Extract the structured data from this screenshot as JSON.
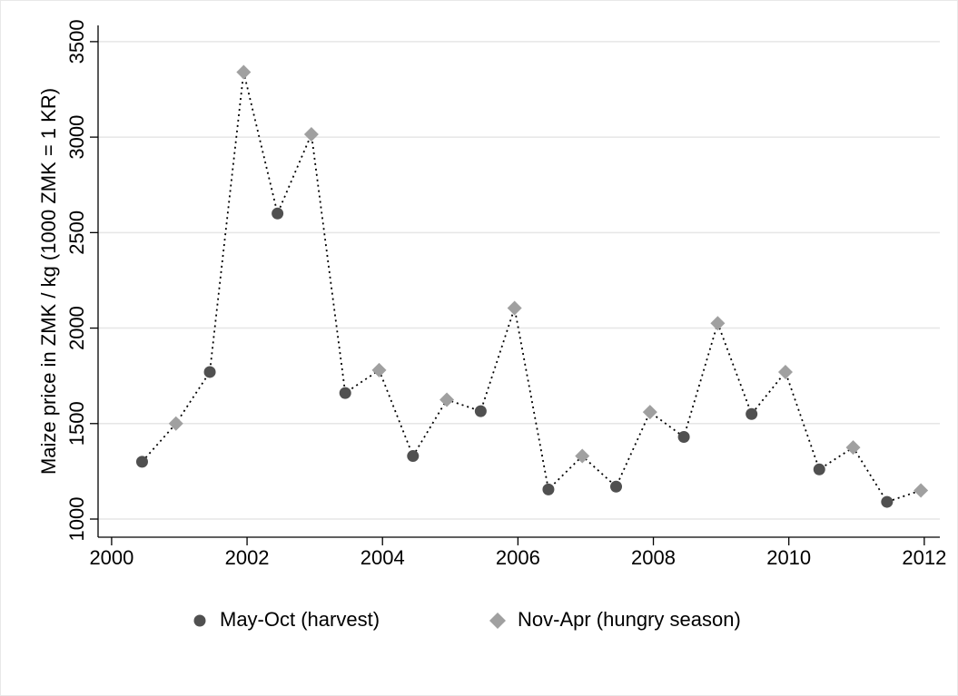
{
  "chart_data": {
    "type": "line",
    "y_label": "Maize price in ZMK / kg (1000 ZMK = 1 KR)",
    "xlim": [
      1999.8,
      2012.23
    ],
    "xticks": [
      2000,
      2002,
      2004,
      2006,
      2008,
      2010,
      2012
    ],
    "ylim": [
      905,
      3585
    ],
    "yticks": [
      1000,
      1500,
      2000,
      2500,
      3000,
      3500
    ],
    "grid": true,
    "legend": "bottom",
    "line_color": "#000000",
    "line_style": "dotted",
    "series": [
      {
        "name": "May-Oct (harvest)",
        "color": "#505050",
        "marker": "circle",
        "x": [
          2000.45,
          2001.45,
          2002.45,
          2003.45,
          2004.45,
          2005.45,
          2006.45,
          2007.45,
          2008.45,
          2009.45,
          2010.45,
          2011.45
        ],
        "values": [
          1300,
          1770,
          2600,
          1660,
          1330,
          1565,
          1155,
          1170,
          1430,
          1550,
          1260,
          1090
        ]
      },
      {
        "name": "Nov-Apr (hungry season)",
        "color": "#a0a0a0",
        "marker": "diamond",
        "x": [
          2000.95,
          2001.95,
          2002.95,
          2003.95,
          2004.95,
          2005.95,
          2006.95,
          2007.95,
          2008.95,
          2009.95,
          2010.95,
          2011.95
        ],
        "values": [
          1500,
          3340,
          3015,
          1780,
          1625,
          2105,
          1330,
          1560,
          2025,
          1770,
          1375,
          1150
        ]
      }
    ]
  }
}
